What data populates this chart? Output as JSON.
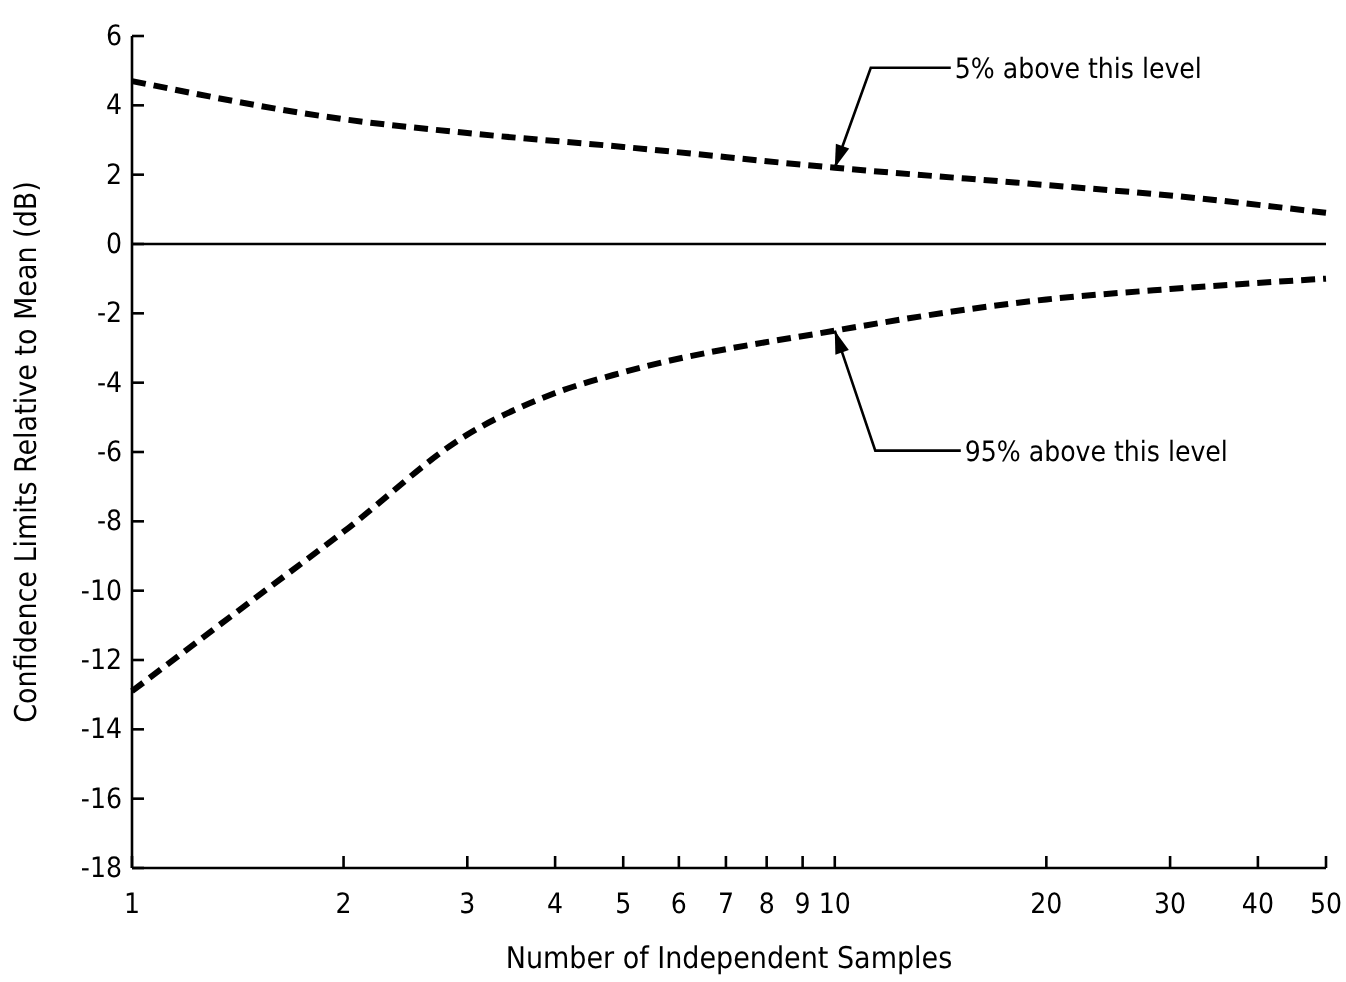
{
  "chart_data": {
    "type": "line",
    "xlabel": "Number of Independent Samples",
    "ylabel": "Confidence Limits Relative to  Mean (dB)",
    "log": "x",
    "xlim": [
      1,
      50
    ],
    "ylim": [
      -18,
      6
    ],
    "xticks": [
      1,
      2,
      3,
      4,
      5,
      6,
      7,
      8,
      9,
      10,
      20,
      30,
      40,
      50
    ],
    "yticks": [
      -18,
      -16,
      -14,
      -12,
      -10,
      -8,
      -6,
      -4,
      -2,
      0,
      2,
      4,
      6
    ],
    "grid": false,
    "marker": "none",
    "line_style": "dashed",
    "series": [
      {
        "color": "#000000",
        "x": [
          1,
          2,
          3,
          5,
          10,
          20,
          30,
          50
        ],
        "values": [
          4.7,
          3.6,
          3.2,
          2.8,
          2.2,
          1.7,
          1.4,
          0.9
        ]
      },
      {
        "color": "#000000",
        "x": [
          1,
          1.5,
          2,
          3,
          4,
          5,
          10,
          20,
          30,
          50
        ],
        "values": [
          -12.9,
          -10.2,
          -8.3,
          -5.5,
          -4.3,
          -3.7,
          -2.5,
          -1.6,
          -1.3,
          -1.0
        ]
      }
    ],
    "ref_lines": [
      {
        "axis": "y",
        "value": 0,
        "color": "#000000",
        "line_style": "solid"
      }
    ],
    "annotations": [
      {
        "text": "5% above this level",
        "x": 10,
        "y": 2.2
      },
      {
        "text": "95% above this level",
        "x": 10,
        "y": -2.5
      }
    ]
  }
}
